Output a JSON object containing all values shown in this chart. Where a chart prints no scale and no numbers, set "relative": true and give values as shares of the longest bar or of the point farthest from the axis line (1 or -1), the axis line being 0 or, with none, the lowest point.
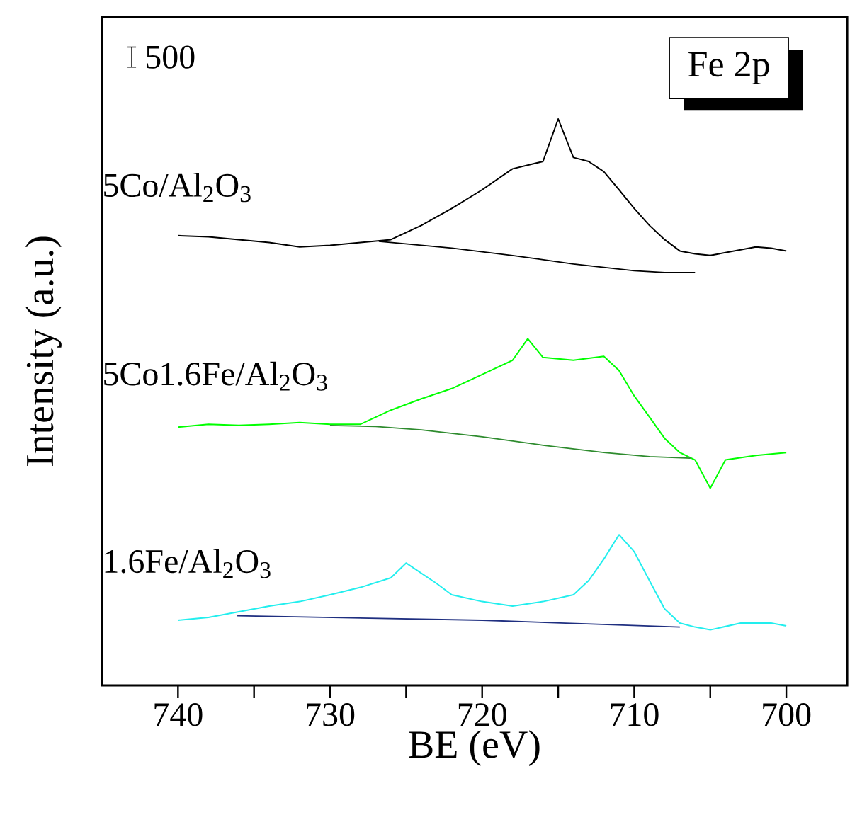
{
  "chart_data": {
    "type": "line",
    "relative": true,
    "xlabel": "BE (eV)",
    "ylabel": "Intensity (a.u.)",
    "xlim": [
      745,
      696
    ],
    "xticks": [
      740,
      {
        "value": 735,
        "label": null
      },
      730,
      {
        "value": 725,
        "label": null
      },
      720,
      {
        "value": 715,
        "label": null
      },
      710,
      {
        "value": 705,
        "label": null
      },
      700
    ],
    "annotations": [
      "500",
      "Fe 2p"
    ],
    "series": [
      {
        "name": "5Co/Al$_{2}$O$_{3}$",
        "color": "#000000",
        "x": [
          740,
          738,
          736,
          734,
          732,
          730,
          728,
          726,
          724,
          722,
          720,
          718,
          716,
          715,
          714,
          713,
          712,
          711,
          710,
          709,
          708,
          707,
          706,
          705,
          704,
          703,
          702,
          701,
          700
        ],
        "values": [
          0.794,
          0.792,
          0.787,
          0.782,
          0.774,
          0.777,
          0.782,
          0.787,
          0.812,
          0.842,
          0.875,
          0.912,
          0.925,
          1.0,
          0.932,
          0.925,
          0.907,
          0.875,
          0.842,
          0.812,
          0.787,
          0.767,
          0.762,
          0.759,
          0.764,
          0.769,
          0.774,
          0.772,
          0.767
        ]
      },
      {
        "color": "#000000",
        "x": [
          726.8,
          722,
          718,
          714,
          710,
          708,
          706
        ],
        "values": [
          0.784,
          0.772,
          0.759,
          0.744,
          0.732,
          0.729,
          0.729
        ]
      },
      {
        "name": "5Co1.6Fe/Al$_{2}$O$_{3}$",
        "color": "#00ff00",
        "x": [
          740,
          738,
          736,
          734,
          732,
          730,
          728,
          726,
          724,
          722,
          720,
          718,
          717,
          716,
          714,
          712,
          711,
          710,
          709,
          708,
          707,
          706,
          705,
          704,
          702,
          700
        ],
        "values": [
          0.456,
          0.461,
          0.459,
          0.461,
          0.464,
          0.461,
          0.461,
          0.486,
          0.506,
          0.524,
          0.549,
          0.574,
          0.612,
          0.579,
          0.574,
          0.581,
          0.556,
          0.511,
          0.474,
          0.436,
          0.411,
          0.398,
          0.348,
          0.398,
          0.406,
          0.411
        ]
      },
      {
        "color": "#2e8b2e",
        "x": [
          730,
          727,
          724,
          720,
          716,
          712,
          709,
          706.3
        ],
        "values": [
          0.459,
          0.457,
          0.451,
          0.439,
          0.424,
          0.411,
          0.404,
          0.401
        ]
      },
      {
        "name": "1.6Fe/Al$_{2}$O$_{3}$",
        "color": "#22eeee",
        "x": [
          740,
          738,
          736,
          734,
          732,
          730,
          728,
          726,
          725,
          724,
          723,
          722,
          720,
          718,
          716,
          714,
          713,
          712,
          711,
          710,
          709,
          708,
          707,
          706,
          705,
          703,
          701,
          700
        ],
        "values": [
          0.115,
          0.12,
          0.13,
          0.14,
          0.148,
          0.16,
          0.173,
          0.19,
          0.216,
          0.198,
          0.18,
          0.16,
          0.148,
          0.14,
          0.148,
          0.16,
          0.185,
          0.223,
          0.266,
          0.236,
          0.185,
          0.135,
          0.11,
          0.103,
          0.098,
          0.11,
          0.11,
          0.105
        ]
      },
      {
        "color": "#1f2f80",
        "x": [
          736.1,
          720,
          707
        ],
        "values": [
          0.123,
          0.115,
          0.103
        ]
      }
    ]
  }
}
